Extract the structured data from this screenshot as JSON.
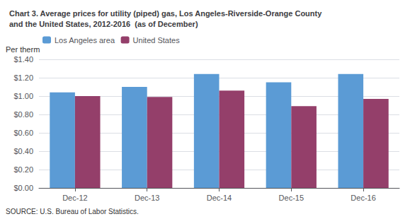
{
  "chart_data": {
    "type": "bar",
    "title": "Chart 3. Average prices for utility (piped) gas, Los Angeles-Riverside-Orange County\nand the United States, 2012-2016  (as of December)",
    "ylabel": "Per therm",
    "categories": [
      "Dec-12",
      "Dec-13",
      "Dec-14",
      "Dec-15",
      "Dec-16"
    ],
    "series": [
      {
        "name": "Los Angeles area",
        "color": "#5B9BD5",
        "values": [
          1.04,
          1.1,
          1.24,
          1.15,
          1.24
        ]
      },
      {
        "name": "United States",
        "color": "#943F6A",
        "values": [
          1.0,
          0.99,
          1.06,
          0.89,
          0.97
        ]
      }
    ],
    "ylim": [
      0,
      1.4
    ],
    "yticks": [
      {
        "value": 0.0,
        "label": "$0.00"
      },
      {
        "value": 0.2,
        "label": "$0.20"
      },
      {
        "value": 0.4,
        "label": "$0.40"
      },
      {
        "value": 0.6,
        "label": "$0.60"
      },
      {
        "value": 0.8,
        "label": "$0.80"
      },
      {
        "value": 1.0,
        "label": "$1.00"
      },
      {
        "value": 1.2,
        "label": "$1.20"
      },
      {
        "value": 1.4,
        "label": "$1.40"
      }
    ],
    "grid": true,
    "legend": "upper left",
    "annotations": [
      "SOURCE: U.S. Bureau of Labor Statistics."
    ]
  }
}
